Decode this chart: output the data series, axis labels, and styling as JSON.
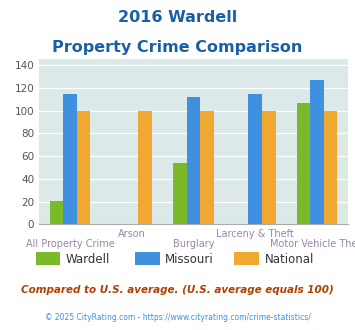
{
  "title_line1": "2016 Wardell",
  "title_line2": "Property Crime Comparison",
  "categories": [
    "All Property Crime",
    "Arson",
    "Burglary",
    "Larceny & Theft",
    "Motor Vehicle Theft"
  ],
  "wardell": [
    21,
    0,
    54,
    0,
    107
  ],
  "missouri": [
    115,
    0,
    112,
    115,
    127
  ],
  "national": [
    100,
    100,
    100,
    100,
    100
  ],
  "wardell_color": "#7aba2a",
  "missouri_color": "#4090e0",
  "national_color": "#f0a830",
  "bg_color": "#dce9e9",
  "title_color": "#1a5fa8",
  "ylim": [
    0,
    145
  ],
  "yticks": [
    0,
    20,
    40,
    60,
    80,
    100,
    120,
    140
  ],
  "footer_text": "Compared to U.S. average. (U.S. average equals 100)",
  "footer_color": "#b04000",
  "copyright_text": "© 2025 CityRating.com - https://www.cityrating.com/crime-statistics/",
  "copyright_color": "#4090e0",
  "legend_labels": [
    "Wardell",
    "Missouri",
    "National"
  ],
  "bar_width": 0.22
}
